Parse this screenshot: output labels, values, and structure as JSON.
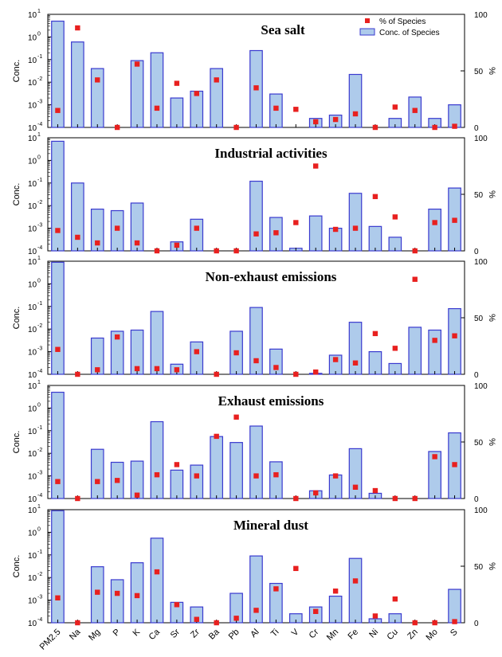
{
  "chart_data": {
    "type": "bar",
    "categories": [
      "PM2.5",
      "Na",
      "Mg",
      "P",
      "K",
      "Ca",
      "Sr",
      "Zr",
      "Ba",
      "Pb",
      "Al",
      "Ti",
      "V",
      "Cr",
      "Mn",
      "Fe",
      "Ni",
      "Cu",
      "Zn",
      "Mo",
      "S"
    ],
    "left_axis": {
      "label": "Conc.",
      "scale": "log",
      "range": [
        0.0001,
        10
      ],
      "tick_mantissa": "10",
      "tick_exponents": [
        "-4",
        "-3",
        "-2",
        "-1",
        "0",
        "1"
      ]
    },
    "right_axis": {
      "label": "%",
      "range": [
        0,
        100
      ],
      "ticks": [
        "0",
        "50",
        "100"
      ]
    },
    "legend": {
      "position": "top-right",
      "entries": [
        {
          "label": "% of Species",
          "marker": "square",
          "color": "#e8201f"
        },
        {
          "label": "Conc. of Species",
          "marker": "bar",
          "color": "#aecbeb",
          "edge": "#3a3acf"
        }
      ]
    },
    "colors": {
      "bar_fill": "#aecbeb",
      "bar_edge": "#3a3acf",
      "point": "#e8201f"
    },
    "panels": [
      {
        "title": "Sea salt",
        "conc": [
          5,
          0.6,
          0.04,
          null,
          0.09,
          0.2,
          0.002,
          0.004,
          0.04,
          null,
          0.25,
          0.003,
          null,
          0.00025,
          0.00035,
          0.022,
          null,
          0.00025,
          0.0022,
          0.00025,
          0.001
        ],
        "percent": [
          15,
          88,
          42,
          0,
          56,
          17,
          39,
          30,
          42,
          0,
          35,
          17,
          16,
          5,
          7,
          12,
          0,
          18,
          15,
          0,
          1
        ]
      },
      {
        "title": "Industrial activities",
        "conc": [
          7,
          0.1,
          0.007,
          0.006,
          0.013,
          null,
          0.00025,
          0.0025,
          null,
          null,
          0.12,
          0.003,
          0.00013,
          0.0035,
          0.001,
          0.035,
          0.0012,
          0.0004,
          null,
          0.007,
          0.06
        ],
        "percent": [
          18,
          12,
          7,
          20,
          7,
          0,
          5,
          20,
          0,
          0,
          15,
          16,
          25,
          75,
          19,
          20,
          48,
          30,
          0,
          25,
          27
        ]
      },
      {
        "title": "Non-exhaust emissions",
        "conc": [
          9,
          null,
          0.004,
          0.008,
          0.009,
          0.06,
          0.00028,
          0.0027,
          null,
          0.008,
          0.09,
          0.0013,
          null,
          0.00011,
          0.0007,
          0.02,
          0.001,
          0.0003,
          0.012,
          0.009,
          0.08
        ],
        "percent": [
          22,
          0,
          4,
          33,
          5,
          5,
          4,
          20,
          0,
          19,
          12,
          6,
          0,
          2,
          13,
          10,
          36,
          23,
          84,
          30,
          34
        ]
      },
      {
        "title": "Exhaust emissions",
        "conc": [
          5,
          null,
          0.015,
          0.004,
          0.0045,
          0.25,
          0.0018,
          0.003,
          0.055,
          0.03,
          0.16,
          0.0042,
          null,
          0.00022,
          0.0011,
          0.016,
          0.00017,
          null,
          null,
          0.012,
          0.08
        ],
        "percent": [
          15,
          0,
          15,
          16,
          3,
          21,
          30,
          20,
          55,
          72,
          20,
          21,
          0,
          5,
          20,
          10,
          7,
          0,
          0,
          37,
          30
        ]
      },
      {
        "title": "Mineral dust",
        "conc": [
          9,
          null,
          0.03,
          0.008,
          0.045,
          0.55,
          0.0008,
          0.0005,
          null,
          0.002,
          0.09,
          0.0055,
          0.00025,
          0.0005,
          0.0015,
          0.07,
          0.00015,
          0.00025,
          null,
          null,
          0.003
        ],
        "percent": [
          22,
          0,
          27,
          26,
          24,
          45,
          16,
          3,
          0,
          4,
          11,
          30,
          48,
          10,
          28,
          37,
          6,
          21,
          0,
          0,
          1
        ]
      }
    ]
  }
}
